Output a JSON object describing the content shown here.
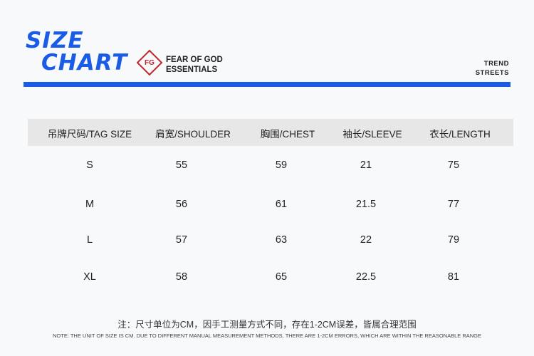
{
  "header": {
    "title_line1": "SIZE",
    "title_line2": "CHART",
    "logo_mark": "FG",
    "brand_line1": "FEAR OF GOD",
    "brand_line2": "ESSENTIALS",
    "tag_line1": "TREND",
    "tag_line2": "STREETS",
    "accent": "#1a5ce6"
  },
  "table": {
    "headers": [
      "吊牌尺码/TAG SIZE",
      "肩宽/SHOULDER",
      "胸围/CHEST",
      "袖长/SLEEVE",
      "衣长/LENGTH"
    ],
    "rows": [
      [
        "S",
        "55",
        "59",
        "21",
        "75"
      ],
      [
        "M",
        "56",
        "61",
        "21.5",
        "77"
      ],
      [
        "L",
        "57",
        "63",
        "22",
        "79"
      ],
      [
        "XL",
        "58",
        "65",
        "22.5",
        "81"
      ]
    ]
  },
  "notes": {
    "zh": "注：尺寸单位为CM，因手工测量方式不同，存在1-2CM误差，皆属合理范围",
    "en": "NOTE: THE UNIT OF SIZE IS CM. DUE TO DIFFERENT MANUAL MEASUREMENT METHODS, THERE ARE 1-2CM ERRORS, WHICH ARE WITHIN THE REASONABLE RANGE"
  }
}
